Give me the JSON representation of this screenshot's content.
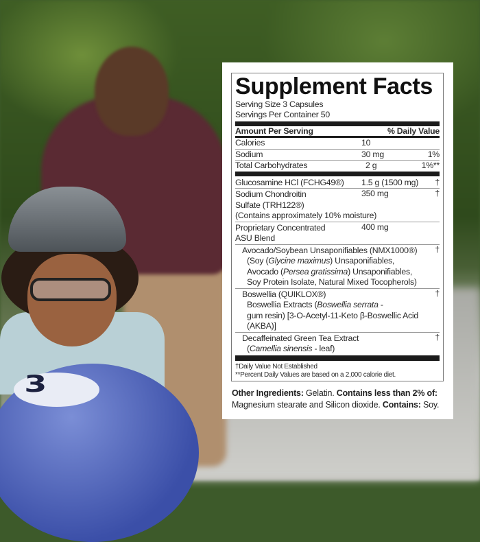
{
  "panel": {
    "title": "Supplement Facts",
    "serving_size": "Serving Size 3 Capsules",
    "servings_per_container": "Servings Per Container 50",
    "header_amount": "Amount Per Serving",
    "header_dv": "% Daily Value",
    "nutrients": [
      {
        "name": "Calories",
        "amount": "10",
        "dv": ""
      },
      {
        "name": "Sodium",
        "amount": "30 mg",
        "dv": "1%"
      },
      {
        "name": "Total Carbohydrates",
        "amount": "2 g",
        "dv": "1%**"
      }
    ],
    "glucosamine": {
      "name": "Glucosamine HCl (FCHG49®)",
      "amount": "1.5 g (1500 mg)",
      "dv": "†"
    },
    "chondroitin": {
      "line1": "Sodium Chondroitin",
      "line2": "Sulfate (TRH122®)",
      "line3": "(Contains approximately 10% moisture)",
      "amount": "350 mg",
      "dv": "†"
    },
    "proprietary": {
      "line1": "Proprietary Concentrated",
      "line2": "ASU Blend",
      "amount": "400 mg"
    },
    "avocado": {
      "name": "Avocado/Soybean Unsaponifiables (NMX1000®)",
      "dv": "†",
      "d1a": "(Soy (",
      "d1i": "Glycine maximus",
      "d1b": ") Unsaponifiables,",
      "d2a": "Avocado (",
      "d2i": "Persea gratissima",
      "d2b": ") Unsaponifiables,",
      "d3": "Soy Protein Isolate, Natural Mixed Tocopherols)"
    },
    "boswellia": {
      "name": "Boswellia (QUIKLOX®)",
      "dv": "†",
      "d1a": "Boswellia Extracts (",
      "d1i": "Boswellia serrata",
      "d1b": " -",
      "d2": "gum resin) [3-O-Acetyl-11-Keto β-Boswellic Acid",
      "d3": "(AKBA)]"
    },
    "green_tea": {
      "name": "Decaffeinated Green Tea Extract",
      "dv": "†",
      "d1a": "(",
      "d1i": "Camellia sinensis",
      "d1b": " - leaf)"
    },
    "footnote1": "†Daily Value Not Established",
    "footnote2": "**Percent Daily Values are based on a 2,000 calorie diet."
  },
  "other_ingredients": {
    "label": "Other Ingredients:",
    "text1": " Gelatin. ",
    "label2": "Contains less than 2% of:",
    "text2": " Magnesium stearate and Silicon dioxide. ",
    "label3": "Contains:",
    "text3": " Soy."
  },
  "photo": {
    "ball_number": "3"
  }
}
